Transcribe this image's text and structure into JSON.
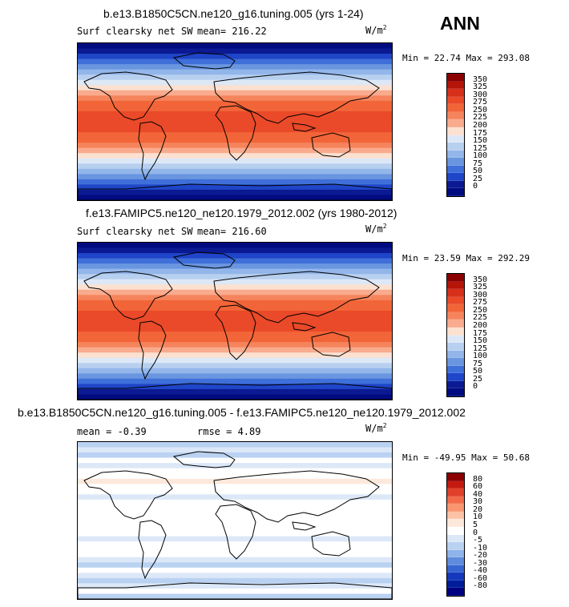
{
  "season": "ANN",
  "units_base": "W/m",
  "units_exp": "2",
  "panels": [
    {
      "title": "b.e13.B1850C5CN.ne120_g16.tuning.005 (yrs 1-24)",
      "variable": "Surf clearsky net SW",
      "mean_label": "mean= 216.22",
      "min_max": "Min =  22.74 Max = 293.08",
      "levels": [
        "350",
        "325",
        "300",
        "275",
        "250",
        "225",
        "200",
        "175",
        "150",
        "125",
        "100",
        "75",
        "50",
        "25",
        "0"
      ]
    },
    {
      "title": "f.e13.FAMIPC5.ne120_ne120.1979_2012.002 (yrs 1980-2012)",
      "variable": "Surf clearsky net SW",
      "mean_label": "mean= 216.60",
      "min_max": "Min =  23.59 Max = 292.29",
      "levels": [
        "350",
        "325",
        "300",
        "275",
        "250",
        "225",
        "200",
        "175",
        "150",
        "125",
        "100",
        "75",
        "50",
        "25",
        "0"
      ]
    },
    {
      "title": "b.e13.B1850C5CN.ne120_g16.tuning.005 - f.e13.FAMIPC5.ne120_ne120.1979_2012.002",
      "mean_label": "mean =  -0.39",
      "rmse_label": "rmse =   4.89",
      "min_max": "Min = -49.95 Max =  50.68",
      "levels": [
        "80",
        "60",
        "40",
        "30",
        "20",
        "10",
        "5",
        "0",
        "-5",
        "-10",
        "-20",
        "-30",
        "-40",
        "-60",
        "-80"
      ]
    }
  ],
  "colors": {
    "abs_scale": [
      "#8b0000",
      "#b51408",
      "#d62f1a",
      "#ea4a29",
      "#f26538",
      "#f5845c",
      "#f9ab8e",
      "#fce0d0",
      "#dde8f7",
      "#b8d0f0",
      "#93b6ea",
      "#6a96e0",
      "#3f6fd9",
      "#1f45c8",
      "#0b1a92",
      "#000b80"
    ],
    "diff_scale": [
      "#8b0000",
      "#c41a10",
      "#e0402a",
      "#f26a48",
      "#f9966f",
      "#fcc2a6",
      "#fde9dc",
      "#ffffff",
      "#dce8f8",
      "#bad2f2",
      "#8fb4ea",
      "#5f8cdc",
      "#3765d2",
      "#1638bd",
      "#001c9a",
      "#000080"
    ]
  }
}
